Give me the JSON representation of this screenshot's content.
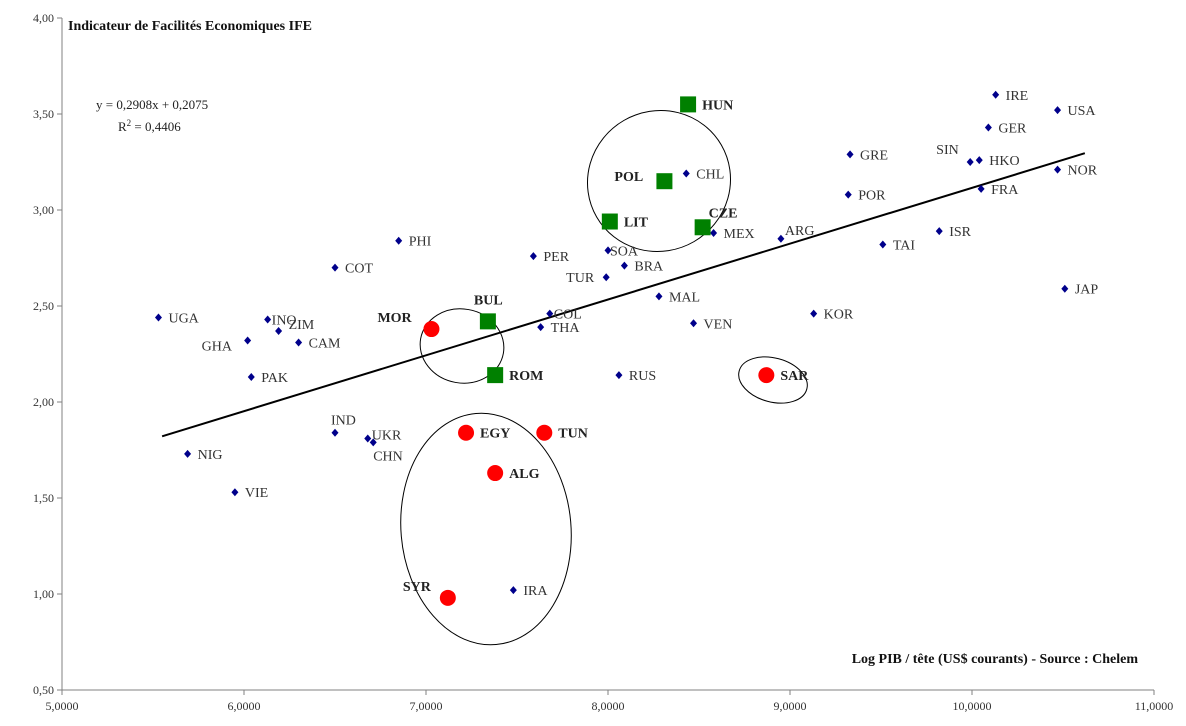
{
  "chart_data": {
    "type": "scatter",
    "title": "Indicateur de Facilités Economiques IFE",
    "xlabel": "Log PIB / tête (US$ courants) - Source : Chelem",
    "ylabel": "",
    "xlim": [
      5.0,
      11.0
    ],
    "ylim": [
      0.5,
      4.0
    ],
    "x_ticks": [
      "5,0000",
      "6,0000",
      "7,0000",
      "8,0000",
      "9,0000",
      "10,0000",
      "11,0000"
    ],
    "y_ticks": [
      "0,50",
      "1,00",
      "1,50",
      "2,00",
      "2,50",
      "3,00",
      "3,50",
      "4,00"
    ],
    "x_tick_values": [
      5,
      6,
      7,
      8,
      9,
      10,
      11
    ],
    "y_tick_values": [
      0.5,
      1.0,
      1.5,
      2.0,
      2.5,
      3.0,
      3.5,
      4.0
    ],
    "equation": "y = 0,2908x + 0,2075",
    "r2_prefix": "R",
    "r2_sup": "2",
    "r2_suffix": " = 0,4406",
    "trendline": {
      "slope": 0.2908,
      "intercept": 0.2075,
      "x_range": [
        5.55,
        10.62
      ]
    },
    "grid": false,
    "legend": "none",
    "colors": {
      "diamond": "#00008B",
      "square": "#008000",
      "circle": "#FF0000",
      "axis": "#808080",
      "text": "#333333"
    },
    "series": [
      {
        "marker": "diamond",
        "points": [
          {
            "label": "IRE",
            "x": 10.13,
            "y": 3.6
          },
          {
            "label": "USA",
            "x": 10.47,
            "y": 3.52
          },
          {
            "label": "GER",
            "x": 10.09,
            "y": 3.43
          },
          {
            "label": "SIN",
            "x": 9.99,
            "y": 3.25
          },
          {
            "label": "HKO",
            "x": 10.04,
            "y": 3.26
          },
          {
            "label": "NOR",
            "x": 10.47,
            "y": 3.21
          },
          {
            "label": "FRA",
            "x": 10.05,
            "y": 3.11
          },
          {
            "label": "GRE",
            "x": 9.33,
            "y": 3.29
          },
          {
            "label": "POR",
            "x": 9.32,
            "y": 3.08
          },
          {
            "label": "ISR",
            "x": 9.82,
            "y": 2.89
          },
          {
            "label": "TAI",
            "x": 9.51,
            "y": 2.82
          },
          {
            "label": "ARG",
            "x": 8.95,
            "y": 2.85
          },
          {
            "label": "JAP",
            "x": 10.51,
            "y": 2.59
          },
          {
            "label": "KOR",
            "x": 9.13,
            "y": 2.46
          },
          {
            "label": "CHL",
            "x": 8.43,
            "y": 3.19
          },
          {
            "label": "MEX",
            "x": 8.58,
            "y": 2.88
          },
          {
            "label": "SOA",
            "x": 8.0,
            "y": 2.79
          },
          {
            "label": "BRA",
            "x": 8.09,
            "y": 2.71
          },
          {
            "label": "TUR",
            "x": 7.99,
            "y": 2.65
          },
          {
            "label": "MAL",
            "x": 8.28,
            "y": 2.55
          },
          {
            "label": "VEN",
            "x": 8.47,
            "y": 2.41
          },
          {
            "label": "PER",
            "x": 7.59,
            "y": 2.76
          },
          {
            "label": "COL",
            "x": 7.68,
            "y": 2.46
          },
          {
            "label": "THA",
            "x": 7.63,
            "y": 2.39
          },
          {
            "label": "RUS",
            "x": 8.06,
            "y": 2.14
          },
          {
            "label": "PHI",
            "x": 6.85,
            "y": 2.84
          },
          {
            "label": "COT",
            "x": 6.5,
            "y": 2.7
          },
          {
            "label": "UGA",
            "x": 5.53,
            "y": 2.44
          },
          {
            "label": "INO",
            "x": 6.13,
            "y": 2.43
          },
          {
            "label": "ZIM",
            "x": 6.19,
            "y": 2.37
          },
          {
            "label": "GHA",
            "x": 6.02,
            "y": 2.32
          },
          {
            "label": "CAM",
            "x": 6.3,
            "y": 2.31
          },
          {
            "label": "PAK",
            "x": 6.04,
            "y": 2.13
          },
          {
            "label": "IND",
            "x": 6.5,
            "y": 1.84
          },
          {
            "label": "UKR",
            "x": 6.68,
            "y": 1.81
          },
          {
            "label": "CHN",
            "x": 6.71,
            "y": 1.79
          },
          {
            "label": "NIG",
            "x": 5.69,
            "y": 1.73
          },
          {
            "label": "VIE",
            "x": 5.95,
            "y": 1.53
          },
          {
            "label": "IRA",
            "x": 7.48,
            "y": 1.02
          }
        ]
      },
      {
        "marker": "square",
        "points": [
          {
            "label": "HUN",
            "x": 8.44,
            "y": 3.55
          },
          {
            "label": "POL",
            "x": 8.31,
            "y": 3.15
          },
          {
            "label": "LIT",
            "x": 8.01,
            "y": 2.94
          },
          {
            "label": "CZE",
            "x": 8.52,
            "y": 2.91
          },
          {
            "label": "BUL",
            "x": 7.34,
            "y": 2.42
          },
          {
            "label": "ROM",
            "x": 7.38,
            "y": 2.14
          }
        ]
      },
      {
        "marker": "circle",
        "points": [
          {
            "label": "MOR",
            "x": 7.03,
            "y": 2.38
          },
          {
            "label": "SAR",
            "x": 8.87,
            "y": 2.14
          },
          {
            "label": "EGY",
            "x": 7.22,
            "y": 1.84
          },
          {
            "label": "TUN",
            "x": 7.65,
            "y": 1.84
          },
          {
            "label": "ALG",
            "x": 7.38,
            "y": 1.63
          },
          {
            "label": "SYR",
            "x": 7.12,
            "y": 0.98
          }
        ]
      }
    ]
  }
}
